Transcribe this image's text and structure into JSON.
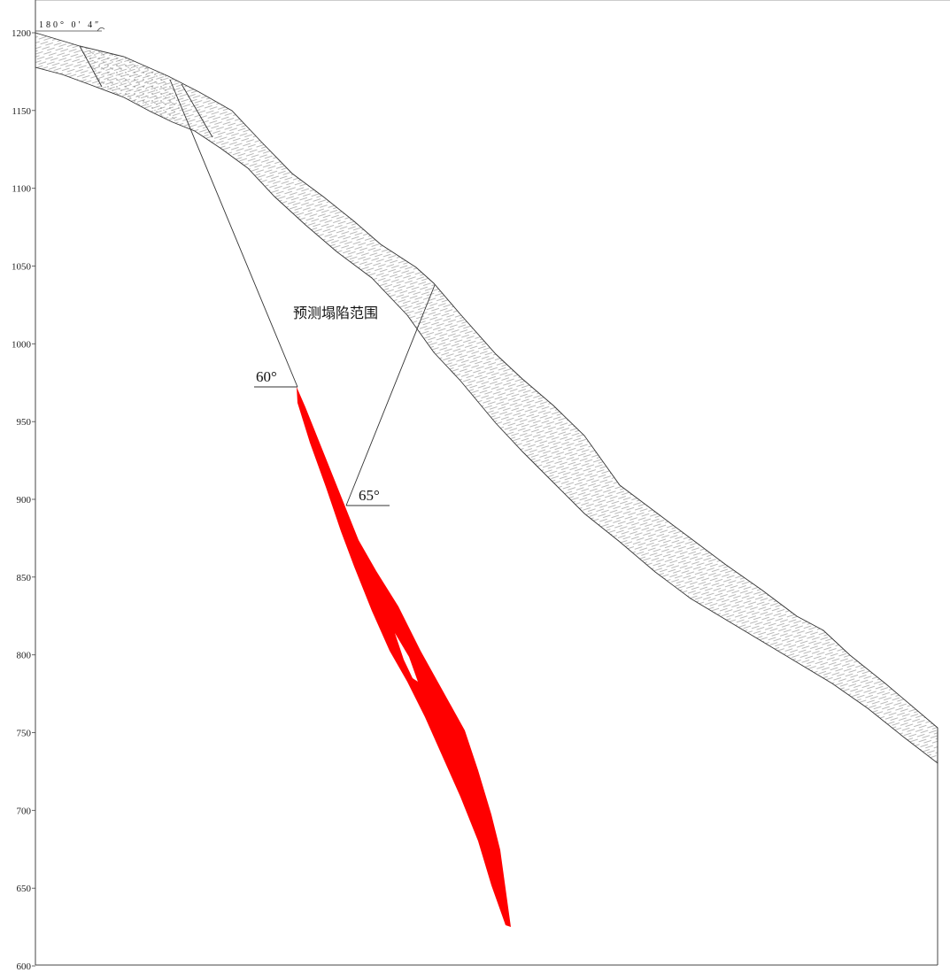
{
  "header": {
    "bearing": "180° 0′ 4″"
  },
  "elevation_axis": {
    "ticks": [
      "1200",
      "1150",
      "1100",
      "1050",
      "1000",
      "950",
      "900",
      "850",
      "800",
      "750",
      "700",
      "650",
      "600"
    ]
  },
  "annotations": {
    "zone_label": "预测塌陷范围",
    "angle_left": "60°",
    "angle_right": "65°"
  },
  "colors": {
    "ore_body": "#ff0000",
    "line": "#333333",
    "hatch": "#777777"
  }
}
